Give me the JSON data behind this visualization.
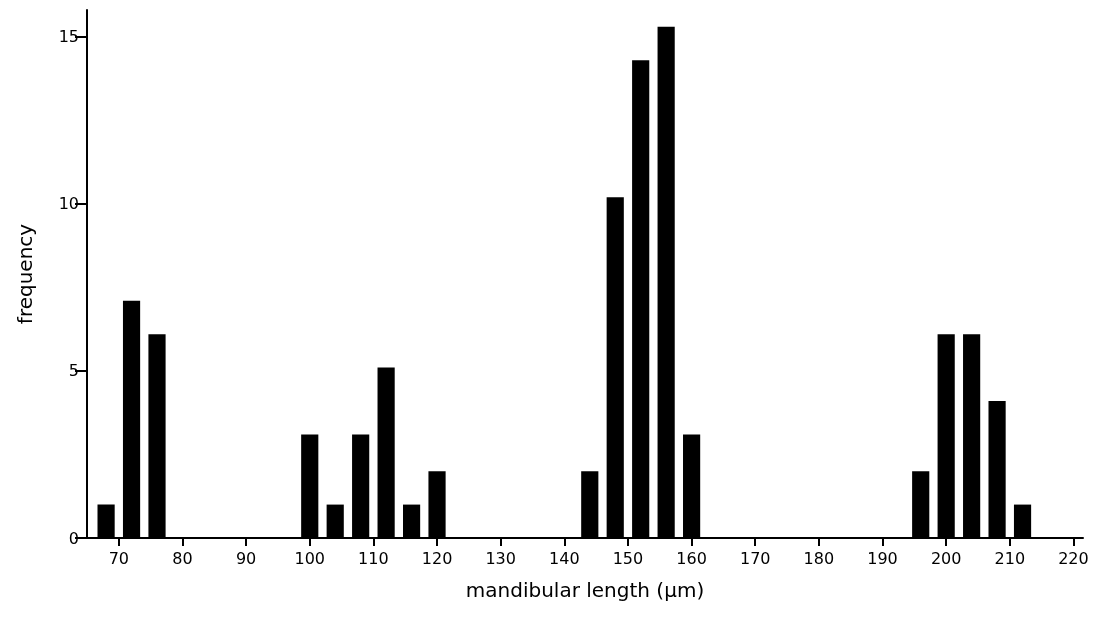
{
  "chart_data": {
    "type": "bar",
    "xlabel": "mandibular length (µm)",
    "ylabel": "frequency",
    "x": [
      68,
      72,
      76,
      100,
      104,
      108,
      112,
      116,
      120,
      144,
      148,
      152,
      156,
      160,
      196,
      200,
      204,
      208,
      212
    ],
    "values": [
      1,
      7.1,
      6.1,
      3.1,
      1,
      3.1,
      5.1,
      1,
      2,
      2,
      10.2,
      14.3,
      15.3,
      3.1,
      2,
      6.1,
      6.1,
      4.1,
      1
    ],
    "color": "#000000",
    "xlim": [
      65,
      221.5
    ],
    "xticks": [
      70,
      80,
      90,
      100,
      110,
      120,
      130,
      140,
      150,
      160,
      170,
      180,
      190,
      200,
      210,
      220
    ],
    "ylim": [
      0,
      15.8
    ],
    "yticks": [
      0,
      5,
      10,
      15
    ]
  }
}
